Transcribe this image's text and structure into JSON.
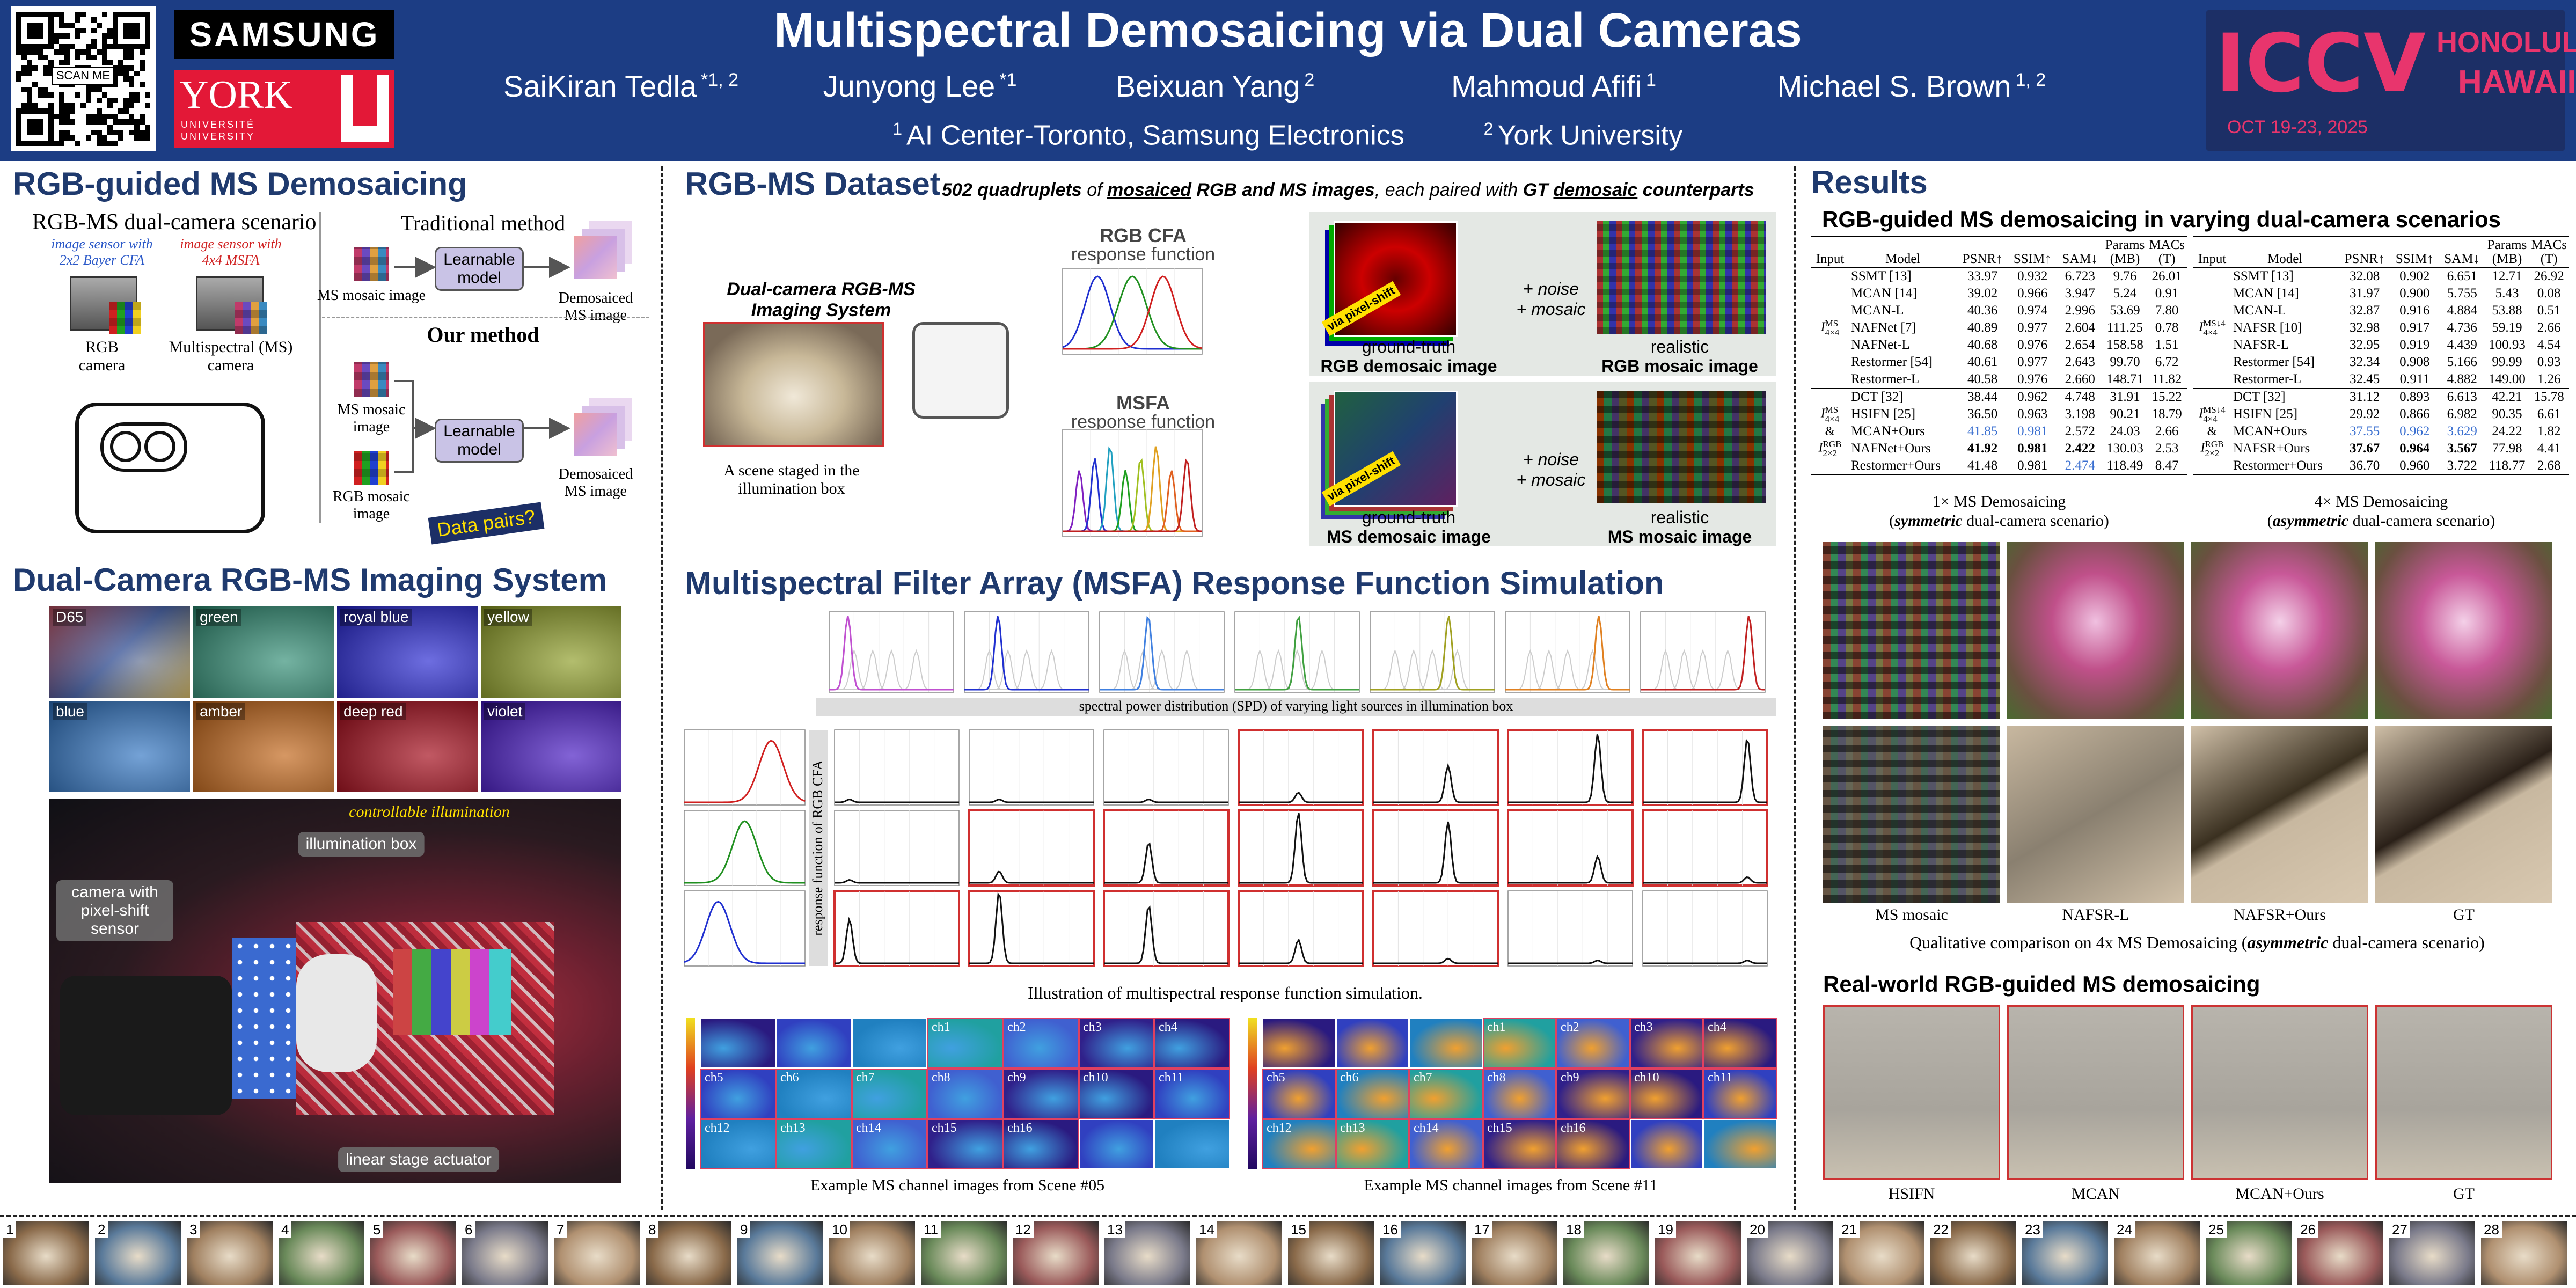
{
  "header": {
    "title": "Multispectral Demosaicing via Dual Cameras",
    "qr": "SCAN ME",
    "samsung": "SAMSUNG",
    "york": "YORK",
    "york_sub": [
      "UNIVERSITÉ",
      "UNIVERSITY"
    ],
    "iccv": "ICCV",
    "city": "HONOLULU",
    "state": "HAWAII",
    "dates": "OCT 19-23, 2025",
    "authors": [
      {
        "name": "SaiKiran Tedla",
        "aff": "*1, 2"
      },
      {
        "name": "Junyong Lee",
        "aff": "*1"
      },
      {
        "name": "Beixuan Yang",
        "aff": "2"
      },
      {
        "name": "Mahmoud Afifi",
        "aff": "1"
      },
      {
        "name": "Michael S. Brown",
        "aff": "1, 2"
      }
    ],
    "affiliations": [
      {
        "mark": "1",
        "name": "AI Center-Toronto, Samsung Electronics"
      },
      {
        "mark": "2",
        "name": "York University"
      }
    ]
  },
  "demosaicing": {
    "title": "RGB-guided MS Demosaicing",
    "scenario": "RGB-MS dual-camera scenario",
    "rgb_sensor": "image sensor with 2x2 Bayer CFA",
    "ms_sensor": "image sensor with 4x4 MSFA",
    "rgb_camera": "RGB camera",
    "ms_camera": "Multispectral (MS) camera",
    "traditional": "Traditional method",
    "ours": "Our method",
    "ms_mosaic": "MS mosaic image",
    "rgb_mosaic": "RGB mosaic image",
    "model": "Learnable model",
    "output": "Demosaiced MS image",
    "pairs": "Data pairs?"
  },
  "system": {
    "title": "Dual-Camera RGB-MS Imaging System",
    "lights": [
      "D65",
      "green",
      "royal blue",
      "yellow",
      "blue",
      "amber",
      "deep red",
      "violet"
    ],
    "controllable": "controllable illumination",
    "box": "illumination box",
    "camera": "camera with pixel-shift sensor",
    "stage": "linear stage actuator"
  },
  "dataset": {
    "title": "RGB-MS Dataset",
    "subtitle": [
      "502 quadruplets",
      "of",
      "mosaiced",
      "RGB and MS images",
      ", each paired with",
      "GT",
      "demosaic",
      "counterparts"
    ],
    "system": "Dual-camera RGB-MS Imaging System",
    "scene": "A scene staged in the illumination box",
    "rgb_cfa": "RGB CFA",
    "msfa": "MSFA",
    "response": "response function",
    "pixel_shift": "via pixel-shift",
    "noise": "+ noise",
    "mosaic": "+ mosaic",
    "ground_truth": "ground-truth",
    "realistic": "realistic",
    "rgb_demosaic": "RGB demosaic image",
    "rgb_mosaic": "RGB mosaic image",
    "ms_demosaic": "MS demosaic image",
    "ms_mosaic": "MS mosaic image"
  },
  "simulation": {
    "title": "Multispectral Filter Array (MSFA) Response Function Simulation",
    "spd": "spectral power distribution (SPD) of varying light sources in illumination box",
    "rgb_response": "response function of RGB CFA",
    "caption": "Illustration of multispectral response function simulation.",
    "channels": [
      "ch1",
      "ch2",
      "ch3",
      "ch4",
      "ch5",
      "ch6",
      "ch7",
      "ch8",
      "ch9",
      "ch10",
      "ch11",
      "ch12",
      "ch13",
      "ch14",
      "ch15",
      "ch16"
    ],
    "scene_captions": [
      "Example MS channel images from Scene #05",
      "Example MS channel images from Scene #11"
    ]
  },
  "results": {
    "title": "Results",
    "subtitle": "RGB-guided MS demosaicing in varying dual-camera scenarios",
    "tables": [
      {
        "columns": [
          "Input",
          "Model",
          "PSNR↑",
          "SSIM↑",
          "SAM↓",
          "Params (MB)",
          "MACs (T)"
        ],
        "groups": [
          {
            "input": [
              {
                "sym": "I",
                "sup": "MS",
                "sub": "4×4"
              }
            ],
            "rows": [
              [
                "SSMT [13]",
                "33.97",
                "0.932",
                "6.723",
                "9.76",
                "26.01"
              ],
              [
                "MCAN [14]",
                "39.02",
                "0.966",
                "3.947",
                "5.24",
                "0.91"
              ],
              [
                "MCAN-L",
                "40.36",
                "0.974",
                "2.996",
                "53.69",
                "7.80"
              ],
              [
                "NAFNet [7]",
                "40.89",
                "0.977",
                "2.604",
                "111.25",
                "0.78"
              ],
              [
                "NAFNet-L",
                "40.68",
                "0.976",
                "2.654",
                "158.58",
                "1.51"
              ],
              [
                "Restormer [54]",
                "40.61",
                "0.977",
                "2.643",
                "99.70",
                "6.72"
              ],
              [
                "Restormer-L",
                "40.58",
                "0.976",
                "2.660",
                "148.71",
                "11.82"
              ]
            ]
          },
          {
            "input": [
              {
                "sym": "I",
                "sup": "MS",
                "sub": "4×4"
              },
              "&",
              {
                "sym": "I",
                "sup": "RGB",
                "sub": "2×2"
              }
            ],
            "rows": [
              [
                "DCT [32]",
                "38.44",
                "0.962",
                "4.748",
                "31.91",
                "15.22"
              ],
              [
                "HSIFN [25]",
                "36.50",
                "0.963",
                "3.198",
                "90.21",
                "18.79"
              ],
              [
                "MCAN+Ours",
                "41.85",
                "0.981",
                "2.572",
                "24.03",
                "2.66"
              ],
              [
                "NAFNet+Ours",
                "41.92",
                "0.981",
                "2.422",
                "130.03",
                "2.53"
              ],
              [
                "Restormer+Ours",
                "41.48",
                "0.981",
                "2.474",
                "118.49",
                "8.47"
              ]
            ]
          }
        ],
        "caption": "1× MS Demosaicing",
        "scenario": [
          "(",
          "symmetric",
          " dual-camera scenario)"
        ]
      },
      {
        "columns": [
          "Input",
          "Model",
          "PSNR↑",
          "SSIM↑",
          "SAM↓",
          "Params (MB)",
          "MACs (T)"
        ],
        "groups": [
          {
            "input": [
              {
                "sym": "I",
                "sup": "MS↓4",
                "sub": "4×4"
              }
            ],
            "rows": [
              [
                "SSMT [13]",
                "32.08",
                "0.902",
                "6.651",
                "12.71",
                "26.92"
              ],
              [
                "MCAN [14]",
                "31.97",
                "0.900",
                "5.755",
                "5.43",
                "0.08"
              ],
              [
                "MCAN-L",
                "32.87",
                "0.916",
                "4.884",
                "53.88",
                "0.51"
              ],
              [
                "NAFSR [10]",
                "32.98",
                "0.917",
                "4.736",
                "59.19",
                "2.66"
              ],
              [
                "NAFSR-L",
                "32.95",
                "0.919",
                "4.439",
                "100.93",
                "4.54"
              ],
              [
                "Restormer [54]",
                "32.34",
                "0.908",
                "5.166",
                "99.99",
                "0.93"
              ],
              [
                "Restormer-L",
                "32.45",
                "0.911",
                "4.882",
                "149.00",
                "1.26"
              ]
            ]
          },
          {
            "input": [
              {
                "sym": "I",
                "sup": "MS↓4",
                "sub": "4×4"
              },
              "&",
              {
                "sym": "I",
                "sup": "RGB",
                "sub": "2×2"
              }
            ],
            "rows": [
              [
                "DCT [32]",
                "31.12",
                "0.893",
                "6.613",
                "42.21",
                "15.78"
              ],
              [
                "HSIFN [25]",
                "29.92",
                "0.866",
                "6.982",
                "90.35",
                "6.61"
              ],
              [
                "MCAN+Ours",
                "37.55",
                "0.962",
                "3.629",
                "24.22",
                "1.82"
              ],
              [
                "NAFSR+Ours",
                "37.67",
                "0.964",
                "3.567",
                "77.98",
                "4.41"
              ],
              [
                "Restormer+Ours",
                "36.70",
                "0.960",
                "3.722",
                "118.77",
                "2.68"
              ]
            ]
          }
        ],
        "caption": "4× MS Demosaicing",
        "scenario": [
          "(",
          "asymmetric",
          " dual-camera scenario)"
        ]
      }
    ],
    "qualitative_labels": [
      "MS mosaic",
      "NAFSR-L",
      "NAFSR+Ours",
      "GT"
    ],
    "qualitative_caption": [
      "Qualitative comparison on 4x MS Demosaicing (",
      "asymmetric",
      " dual-camera scenario)"
    ],
    "real_world_title": "Real-world RGB-guided MS demosaicing",
    "real_world_labels": [
      "HSIFN",
      "MCAN",
      "MCAN+Ours",
      "GT"
    ]
  },
  "scenes": [
    1,
    2,
    3,
    4,
    5,
    6,
    7,
    8,
    9,
    10,
    11,
    12,
    13,
    14,
    15,
    16,
    17,
    18,
    19,
    20,
    21,
    22,
    23,
    24,
    25,
    26,
    27,
    28
  ]
}
